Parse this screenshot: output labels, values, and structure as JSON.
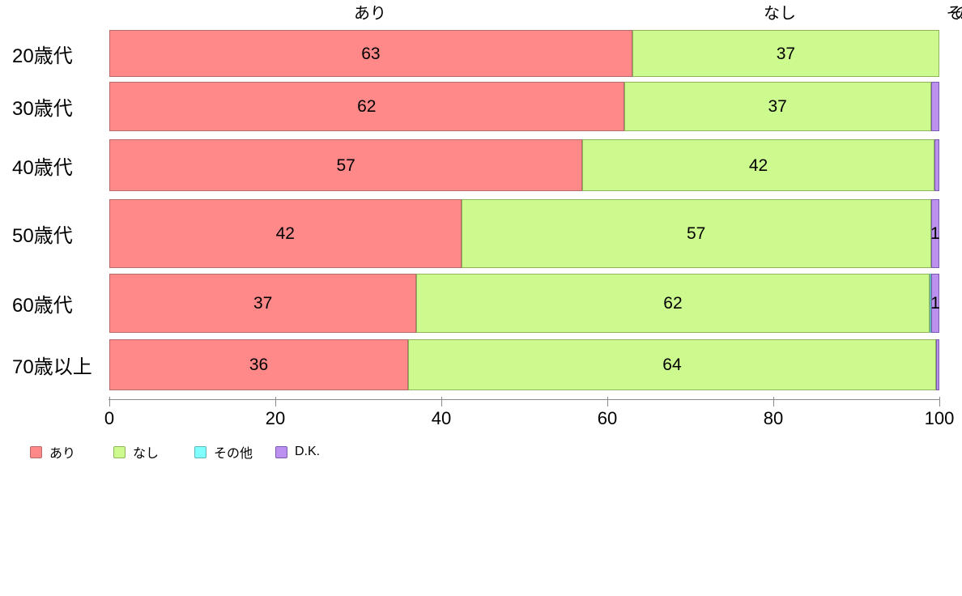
{
  "chart_data": {
    "type": "bar",
    "orientation": "horizontal-stacked",
    "title": "",
    "xlabel": "",
    "ylabel": "",
    "xlim": [
      0,
      100
    ],
    "x_ticks": [
      0,
      20,
      40,
      60,
      80,
      100
    ],
    "grid": false,
    "legend_position": "bottom",
    "categories": [
      "20歳代",
      "30歳代",
      "40歳代",
      "50歳代",
      "60歳代",
      "70歳以上"
    ],
    "series": [
      {
        "name": "あり",
        "color": "#FF8888",
        "values": [
          63,
          62,
          57,
          42,
          37,
          36
        ]
      },
      {
        "name": "なし",
        "color": "#CCFA8E",
        "values": [
          37,
          37,
          42,
          57,
          62,
          64
        ]
      },
      {
        "name": "その他",
        "color": "#80FFFF",
        "values": [
          0,
          0,
          0,
          0,
          0.3,
          0
        ]
      },
      {
        "name": "D.K.",
        "color": "#BC90EE",
        "values": [
          0,
          1,
          0.6,
          1,
          1,
          0.4
        ]
      }
    ]
  },
  "top_labels": {
    "ari": "あり",
    "nashi": "なし",
    "truncated": "その..."
  },
  "series_styles": {
    "あり": {
      "fill": "#FF8888",
      "border": "#b86a6a"
    },
    "なし": {
      "fill": "#CCFA8E",
      "border": "#8fb45a"
    },
    "その他": {
      "fill": "#80FFFF",
      "border": "#5fb4b4"
    },
    "D.K.": {
      "fill": "#BC90EE",
      "border": "#7a5aae"
    }
  },
  "rows": [
    {
      "category": "20歳代",
      "segments": [
        {
          "series": "あり",
          "w": 63,
          "label": "63"
        },
        {
          "series": "なし",
          "w": 37,
          "label": "37"
        }
      ]
    },
    {
      "category": "30歳代",
      "segments": [
        {
          "series": "あり",
          "w": 62,
          "label": "62"
        },
        {
          "series": "なし",
          "w": 37,
          "label": "37"
        },
        {
          "series": "D.K.",
          "w": 1,
          "label": ""
        }
      ]
    },
    {
      "category": "40歳代",
      "segments": [
        {
          "series": "あり",
          "w": 57,
          "label": "57"
        },
        {
          "series": "なし",
          "w": 42.4,
          "label": "42"
        },
        {
          "series": "D.K.",
          "w": 0.6,
          "label": ""
        }
      ]
    },
    {
      "category": "50歳代",
      "segments": [
        {
          "series": "あり",
          "w": 42.4,
          "label": "42"
        },
        {
          "series": "なし",
          "w": 56.6,
          "label": "57"
        },
        {
          "series": "D.K.",
          "w": 1,
          "label": "1"
        }
      ]
    },
    {
      "category": "60歳代",
      "segments": [
        {
          "series": "あり",
          "w": 37,
          "label": "37"
        },
        {
          "series": "なし",
          "w": 61.8,
          "label": "62"
        },
        {
          "series": "その他",
          "w": 0.25,
          "label": ""
        },
        {
          "series": "D.K.",
          "w": 0.95,
          "label": "1"
        }
      ]
    },
    {
      "category": "70歳以上",
      "segments": [
        {
          "series": "あり",
          "w": 36,
          "label": "36"
        },
        {
          "series": "なし",
          "w": 63.6,
          "label": "64"
        },
        {
          "series": "D.K.",
          "w": 0.4,
          "label": ""
        }
      ]
    }
  ],
  "axis": {
    "tick_labels": [
      "0",
      "20",
      "40",
      "60",
      "80",
      "100"
    ]
  },
  "legend": [
    {
      "label": "あり",
      "color": "#FF8888"
    },
    {
      "label": "なし",
      "color": "#CCFA8E"
    },
    {
      "label": "その他",
      "color": "#80FFFF"
    },
    {
      "label": "D.K.",
      "color": "#BC90EE"
    }
  ]
}
